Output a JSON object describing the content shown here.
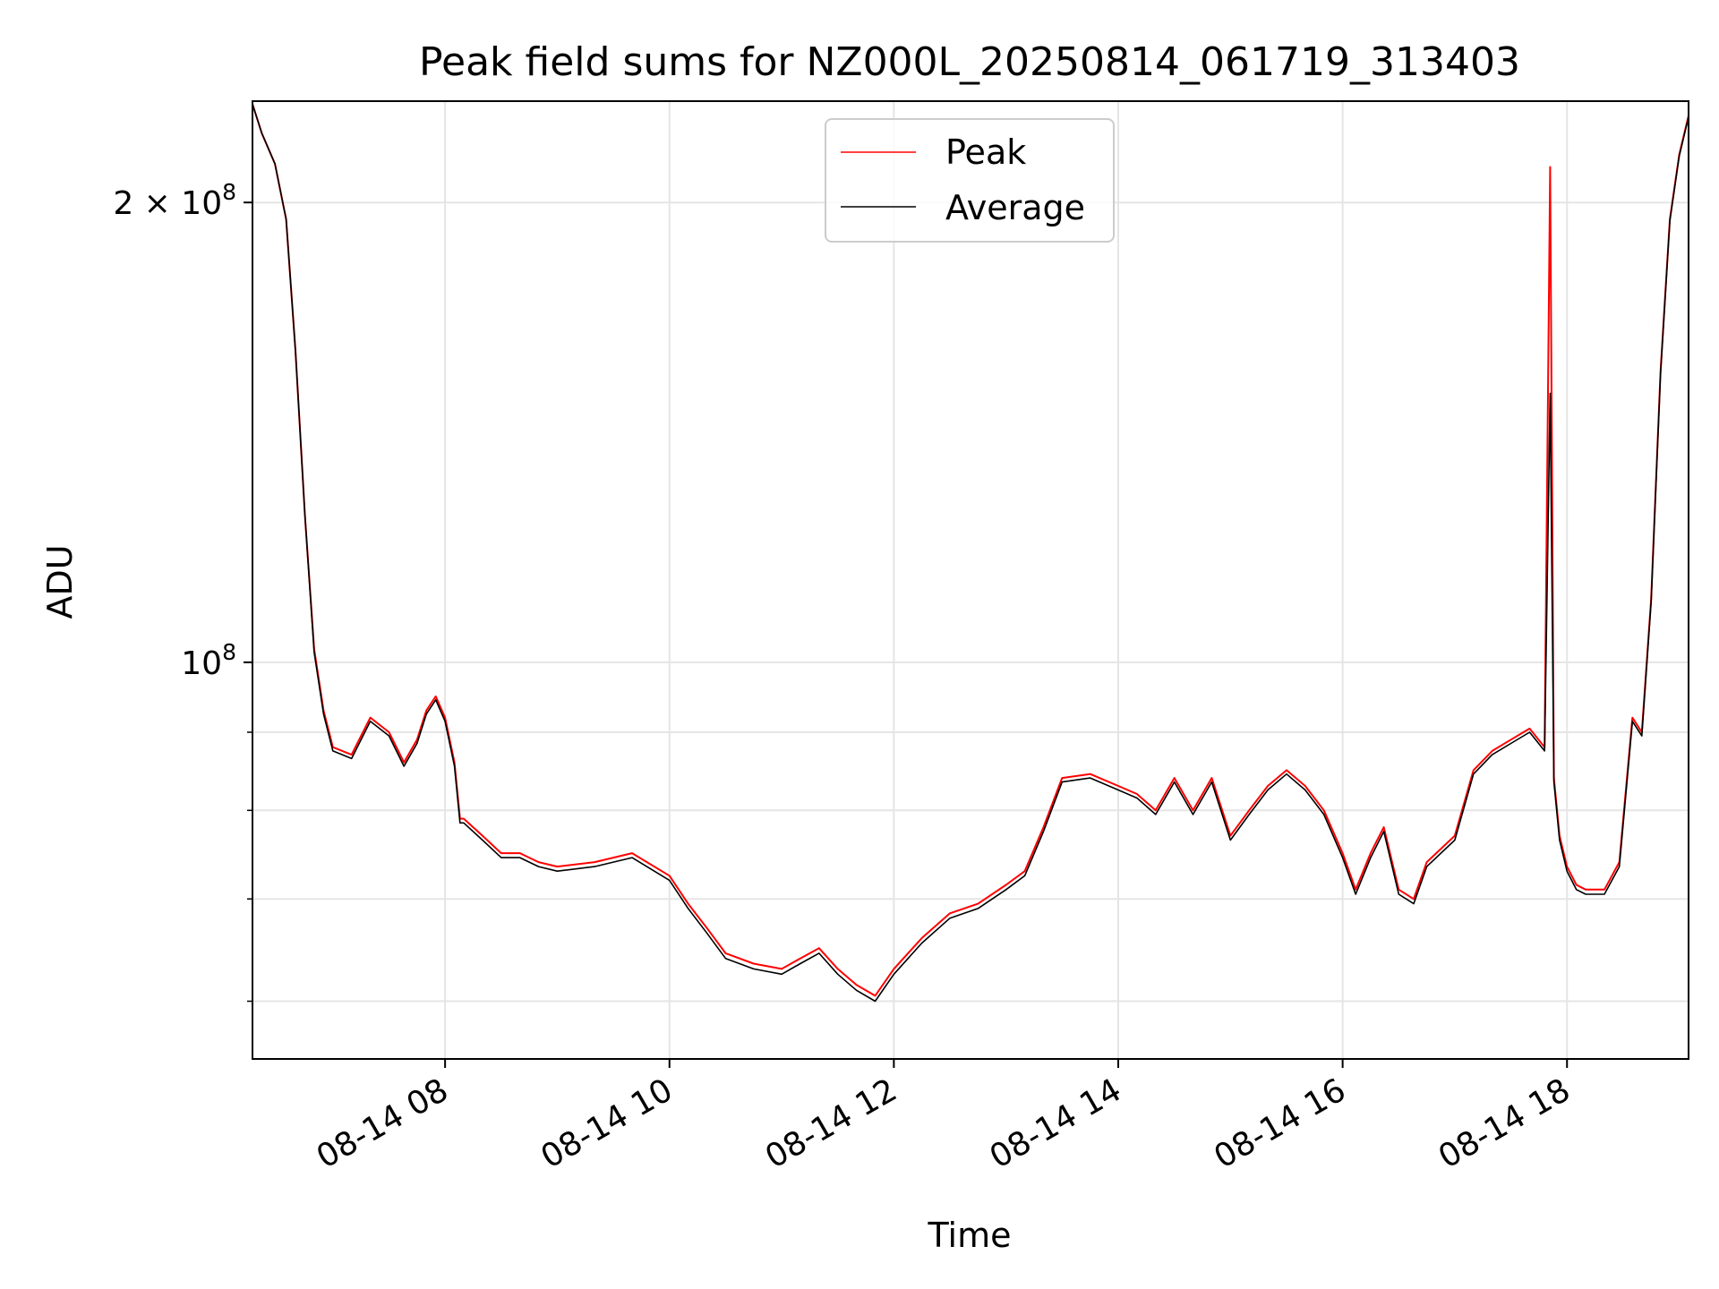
{
  "chart_data": {
    "type": "line",
    "title": "Peak field sums for NZ000L_20250814_061719_313403",
    "xlabel": "Time",
    "ylabel": "ADU",
    "x_scale": "time",
    "y_scale": "log",
    "xlim": [
      "2025-08-14 06:17",
      "2025-08-14 19:05"
    ],
    "ylim": [
      55000000,
      233000000
    ],
    "grid": true,
    "legend_position": "top-center",
    "x_ticks": [
      {
        "time": "2025-08-14 08:00",
        "label": "08-14 08"
      },
      {
        "time": "2025-08-14 10:00",
        "label": "08-14 10"
      },
      {
        "time": "2025-08-14 12:00",
        "label": "08-14 12"
      },
      {
        "time": "2025-08-14 14:00",
        "label": "08-14 14"
      },
      {
        "time": "2025-08-14 16:00",
        "label": "08-14 16"
      },
      {
        "time": "2025-08-14 18:00",
        "label": "08-14 18"
      }
    ],
    "y_major_ticks": [
      {
        "value": 100000000,
        "label_base": "10",
        "label_exp": "8"
      },
      {
        "value": 200000000,
        "label_base": "2 × 10",
        "label_exp": "8"
      }
    ],
    "y_minor_ticks": [
      60000000,
      70000000,
      80000000,
      90000000
    ],
    "x": [
      "2025-08-14 06:17",
      "2025-08-14 06:22",
      "2025-08-14 06:29",
      "2025-08-14 06:35",
      "2025-08-14 06:40",
      "2025-08-14 06:45",
      "2025-08-14 06:50",
      "2025-08-14 06:55",
      "2025-08-14 07:00",
      "2025-08-14 07:10",
      "2025-08-14 07:20",
      "2025-08-14 07:30",
      "2025-08-14 07:38",
      "2025-08-14 07:45",
      "2025-08-14 07:50",
      "2025-08-14 07:55",
      "2025-08-14 08:00",
      "2025-08-14 08:05",
      "2025-08-14 08:08",
      "2025-08-14 08:10",
      "2025-08-14 08:20",
      "2025-08-14 08:30",
      "2025-08-14 08:40",
      "2025-08-14 08:50",
      "2025-08-14 09:00",
      "2025-08-14 09:20",
      "2025-08-14 09:40",
      "2025-08-14 10:00",
      "2025-08-14 10:10",
      "2025-08-14 10:20",
      "2025-08-14 10:30",
      "2025-08-14 10:45",
      "2025-08-14 11:00",
      "2025-08-14 11:10",
      "2025-08-14 11:20",
      "2025-08-14 11:30",
      "2025-08-14 11:40",
      "2025-08-14 11:50",
      "2025-08-14 12:00",
      "2025-08-14 12:15",
      "2025-08-14 12:30",
      "2025-08-14 12:45",
      "2025-08-14 13:00",
      "2025-08-14 13:10",
      "2025-08-14 13:20",
      "2025-08-14 13:30",
      "2025-08-14 13:45",
      "2025-08-14 14:00",
      "2025-08-14 14:10",
      "2025-08-14 14:20",
      "2025-08-14 14:30",
      "2025-08-14 14:40",
      "2025-08-14 14:50",
      "2025-08-14 15:00",
      "2025-08-14 15:10",
      "2025-08-14 15:20",
      "2025-08-14 15:30",
      "2025-08-14 15:40",
      "2025-08-14 15:50",
      "2025-08-14 16:00",
      "2025-08-14 16:07",
      "2025-08-14 16:15",
      "2025-08-14 16:22",
      "2025-08-14 16:30",
      "2025-08-14 16:38",
      "2025-08-14 16:45",
      "2025-08-14 17:00",
      "2025-08-14 17:10",
      "2025-08-14 17:20",
      "2025-08-14 17:30",
      "2025-08-14 17:40",
      "2025-08-14 17:48",
      "2025-08-14 17:51",
      "2025-08-14 17:53",
      "2025-08-14 17:56",
      "2025-08-14 18:00",
      "2025-08-14 18:05",
      "2025-08-14 18:10",
      "2025-08-14 18:20",
      "2025-08-14 18:28",
      "2025-08-14 18:35",
      "2025-08-14 18:40",
      "2025-08-14 18:45",
      "2025-08-14 18:50",
      "2025-08-14 18:55",
      "2025-08-14 19:00",
      "2025-08-14 19:05"
    ],
    "series": [
      {
        "name": "Peak",
        "color": "#ff0000",
        "values": [
          232000000,
          222000000,
          212000000,
          195000000,
          160000000,
          125000000,
          102000000,
          93000000,
          88000000,
          87000000,
          92000000,
          90000000,
          86000000,
          89000000,
          93000000,
          95000000,
          92000000,
          86000000,
          79000000,
          79000000,
          77000000,
          75000000,
          75000000,
          74000000,
          73500000,
          74000000,
          75000000,
          72500000,
          69500000,
          67000000,
          64500000,
          63500000,
          63000000,
          64000000,
          65000000,
          63000000,
          61500000,
          60500000,
          63000000,
          66000000,
          68500000,
          69500000,
          71500000,
          73000000,
          78000000,
          84000000,
          84500000,
          83000000,
          82000000,
          80000000,
          84000000,
          80000000,
          84000000,
          77000000,
          80000000,
          83000000,
          85000000,
          83000000,
          80000000,
          75000000,
          71000000,
          75000000,
          78000000,
          71000000,
          70000000,
          74000000,
          77000000,
          85000000,
          87500000,
          89000000,
          90500000,
          88000000,
          211000000,
          84000000,
          77000000,
          73500000,
          71500000,
          71000000,
          71000000,
          74000000,
          92000000,
          90000000,
          110000000,
          155000000,
          195000000,
          215000000,
          228000000
        ]
      },
      {
        "name": "Average",
        "color": "#000000",
        "values": [
          232000000,
          222000000,
          212000000,
          195000000,
          160000000,
          125000000,
          101500000,
          92500000,
          87500000,
          86500000,
          91500000,
          89500000,
          85500000,
          88500000,
          92500000,
          94500000,
          91500000,
          85500000,
          78500000,
          78500000,
          76500000,
          74500000,
          74500000,
          73500000,
          73000000,
          73500000,
          74500000,
          72000000,
          69000000,
          66500000,
          64000000,
          63000000,
          62500000,
          63500000,
          64500000,
          62500000,
          61000000,
          60000000,
          62500000,
          65500000,
          68000000,
          69000000,
          71000000,
          72500000,
          77500000,
          83500000,
          84000000,
          82500000,
          81500000,
          79500000,
          83500000,
          79500000,
          83500000,
          76500000,
          79500000,
          82500000,
          84500000,
          82500000,
          79500000,
          74500000,
          70500000,
          74500000,
          77500000,
          70500000,
          69500000,
          73500000,
          76500000,
          84500000,
          87000000,
          88500000,
          90000000,
          87500000,
          150000000,
          83500000,
          76500000,
          73000000,
          71000000,
          70500000,
          70500000,
          73500000,
          91500000,
          89500000,
          109500000,
          154500000,
          194500000,
          214500000,
          227500000
        ]
      }
    ]
  }
}
